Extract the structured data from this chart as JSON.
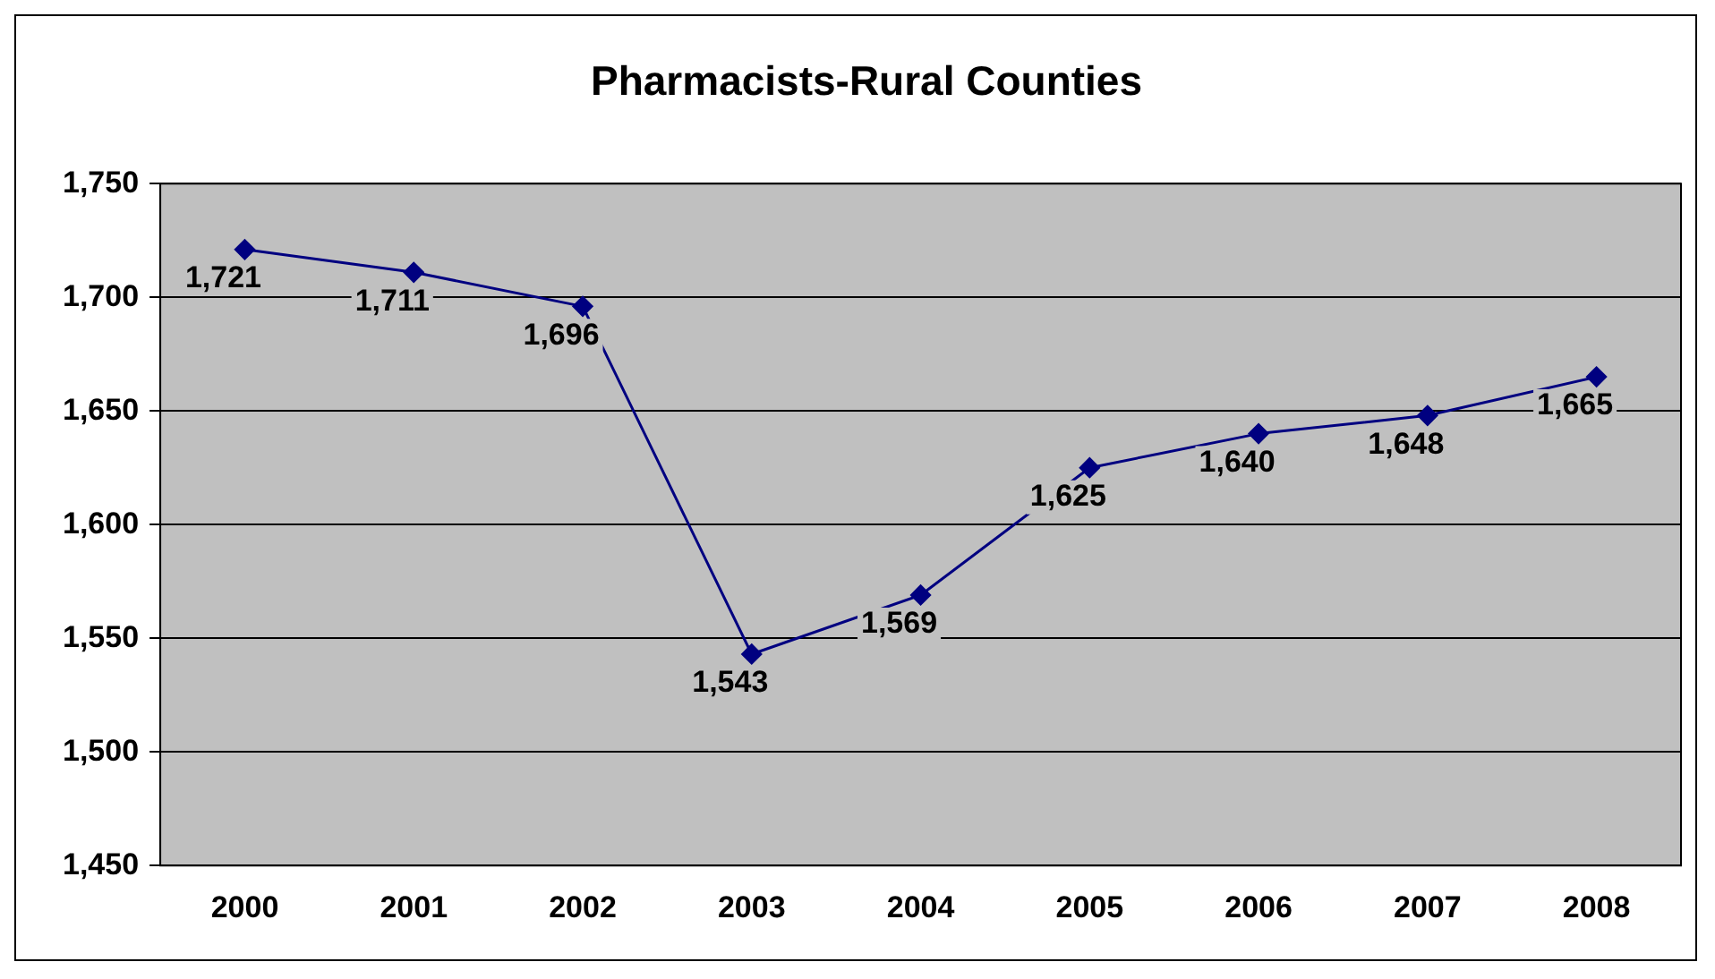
{
  "chart_data": {
    "type": "line",
    "title": "Pharmacists-Rural Counties",
    "categories": [
      "2000",
      "2001",
      "2002",
      "2003",
      "2004",
      "2005",
      "2006",
      "2007",
      "2008"
    ],
    "series": [
      {
        "color": "#000080",
        "values": [
          1721,
          1711,
          1696,
          1543,
          1569,
          1625,
          1640,
          1648,
          1665
        ],
        "value_labels": [
          "1,721",
          "1,711",
          "1,696",
          "1,543",
          "1,569",
          "1,625",
          "1,640",
          "1,648",
          "1,665"
        ]
      }
    ],
    "ylim": [
      1450,
      1750
    ],
    "yticks": [
      {
        "value": 1450,
        "label": "1,450"
      },
      {
        "value": 1500,
        "label": "1,500"
      },
      {
        "value": 1550,
        "label": "1,550"
      },
      {
        "value": 1600,
        "label": "1,600"
      },
      {
        "value": 1650,
        "label": "1,650"
      },
      {
        "value": 1700,
        "label": "1,700"
      },
      {
        "value": 1750,
        "label": "1,750"
      }
    ],
    "grid": "y",
    "legend": false,
    "marker": "diamond",
    "line_style": "solid"
  }
}
